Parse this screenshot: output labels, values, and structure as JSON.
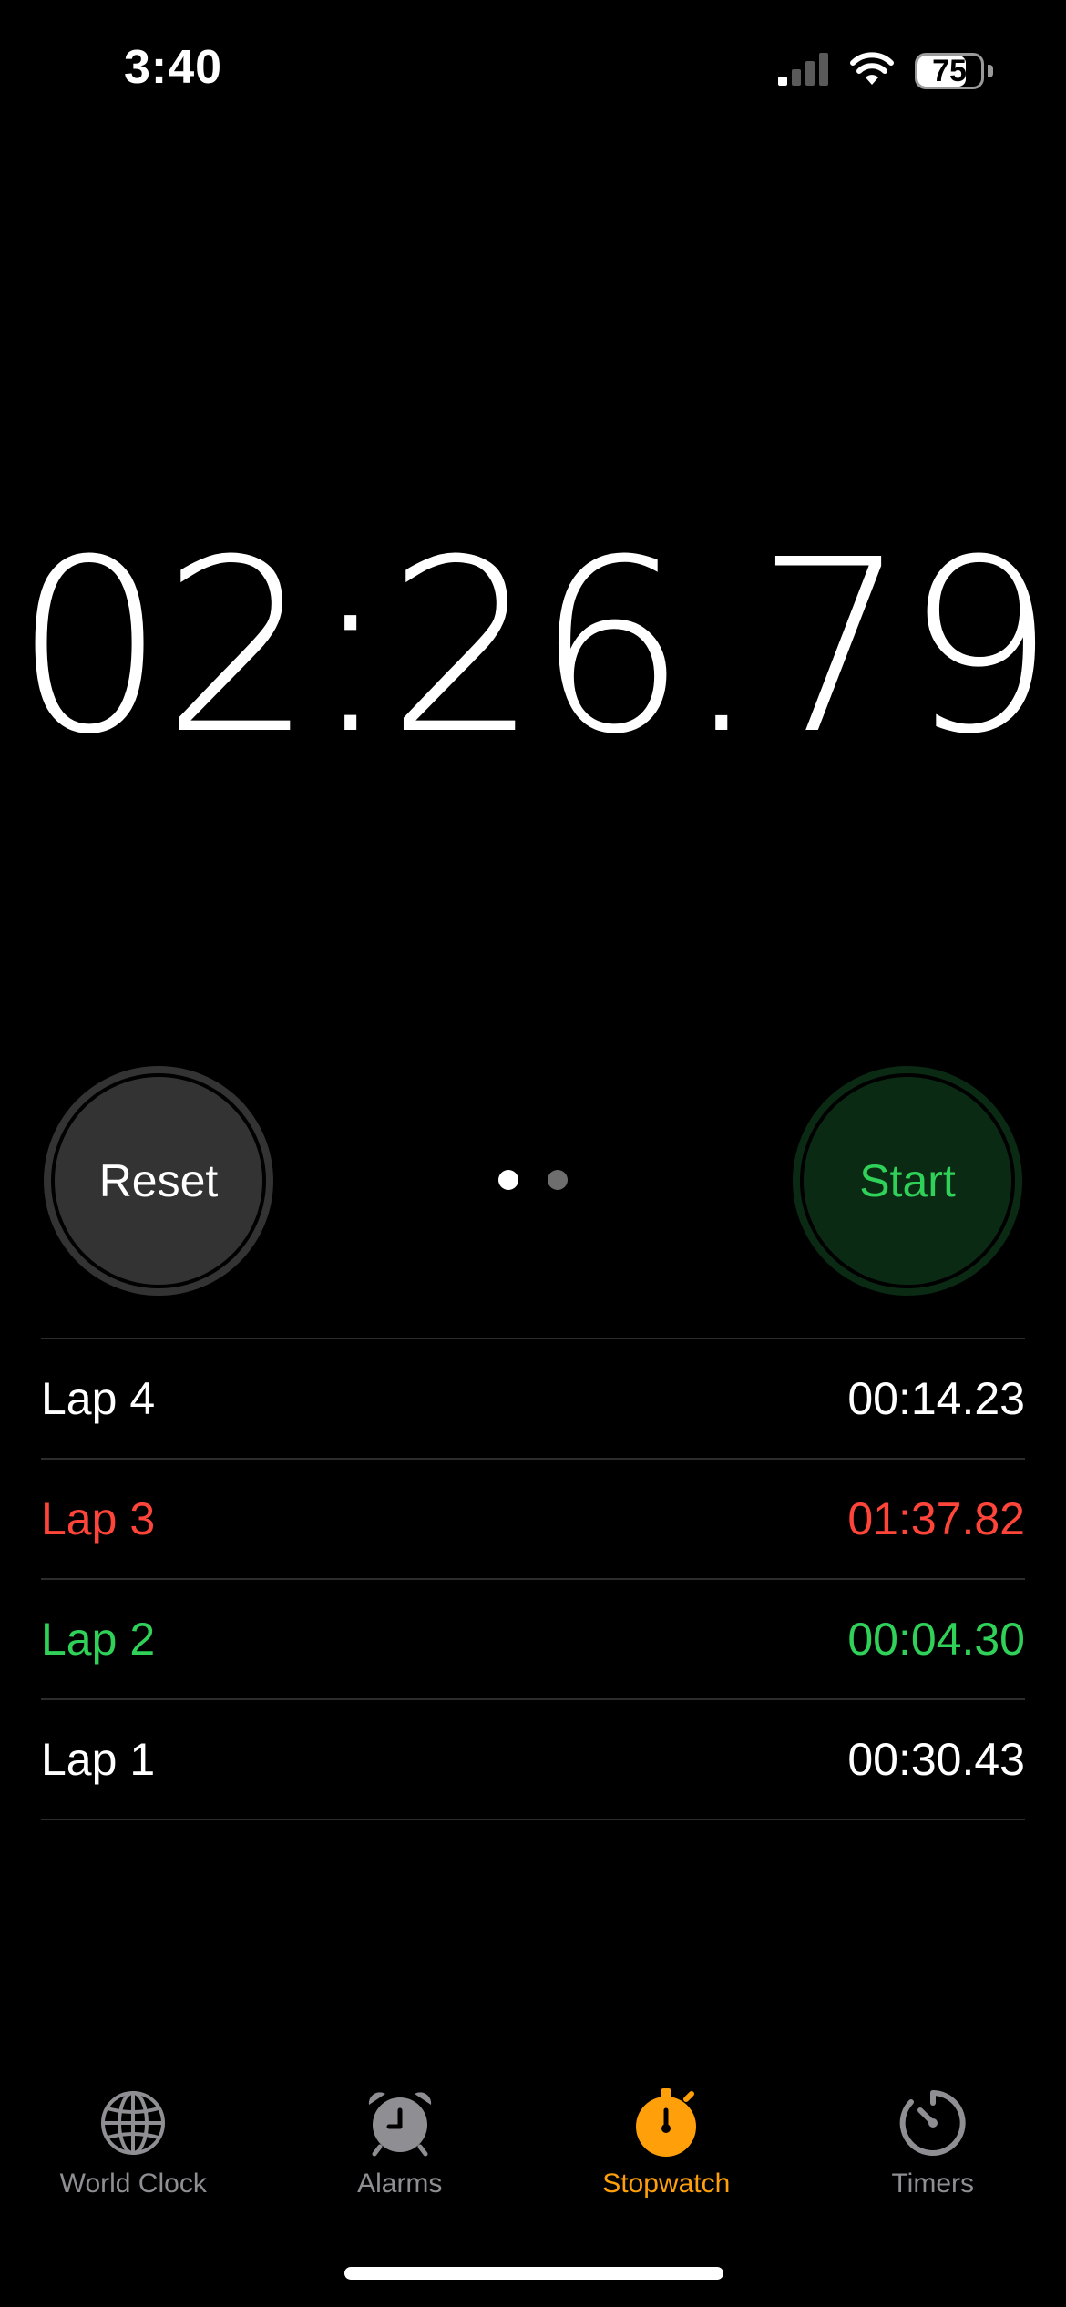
{
  "status_bar": {
    "time": "3:40",
    "battery_level": "75",
    "battery_fraction": 0.75,
    "signal_icon": "cellular-signal-icon",
    "wifi_icon": "wifi-icon"
  },
  "stopwatch": {
    "display_time": "02:26.79",
    "reset_label": "Reset",
    "start_label": "Start",
    "page_indicator": {
      "total": 2,
      "active": 1
    }
  },
  "laps": [
    {
      "label": "Lap 4",
      "time": "00:14.23",
      "color": "#ffffff"
    },
    {
      "label": "Lap 3",
      "time": "01:37.82",
      "color": "#ff453a"
    },
    {
      "label": "Lap 2",
      "time": "00:04.30",
      "color": "#30d158"
    },
    {
      "label": "Lap 1",
      "time": "00:30.43",
      "color": "#ffffff"
    }
  ],
  "tabs": [
    {
      "label": "World Clock",
      "icon": "globe-icon",
      "active": false
    },
    {
      "label": "Alarms",
      "icon": "alarm-clock-icon",
      "active": false
    },
    {
      "label": "Stopwatch",
      "icon": "stopwatch-icon",
      "active": true
    },
    {
      "label": "Timers",
      "icon": "timer-icon",
      "active": false
    }
  ],
  "colors": {
    "accent": "#ff9f0a",
    "inactive_tab": "#8e8e93",
    "start_green": "#30d158",
    "start_bg": "#0b2a14",
    "reset_bg": "#333333",
    "lap_worst": "#ff453a",
    "lap_best": "#30d158"
  }
}
